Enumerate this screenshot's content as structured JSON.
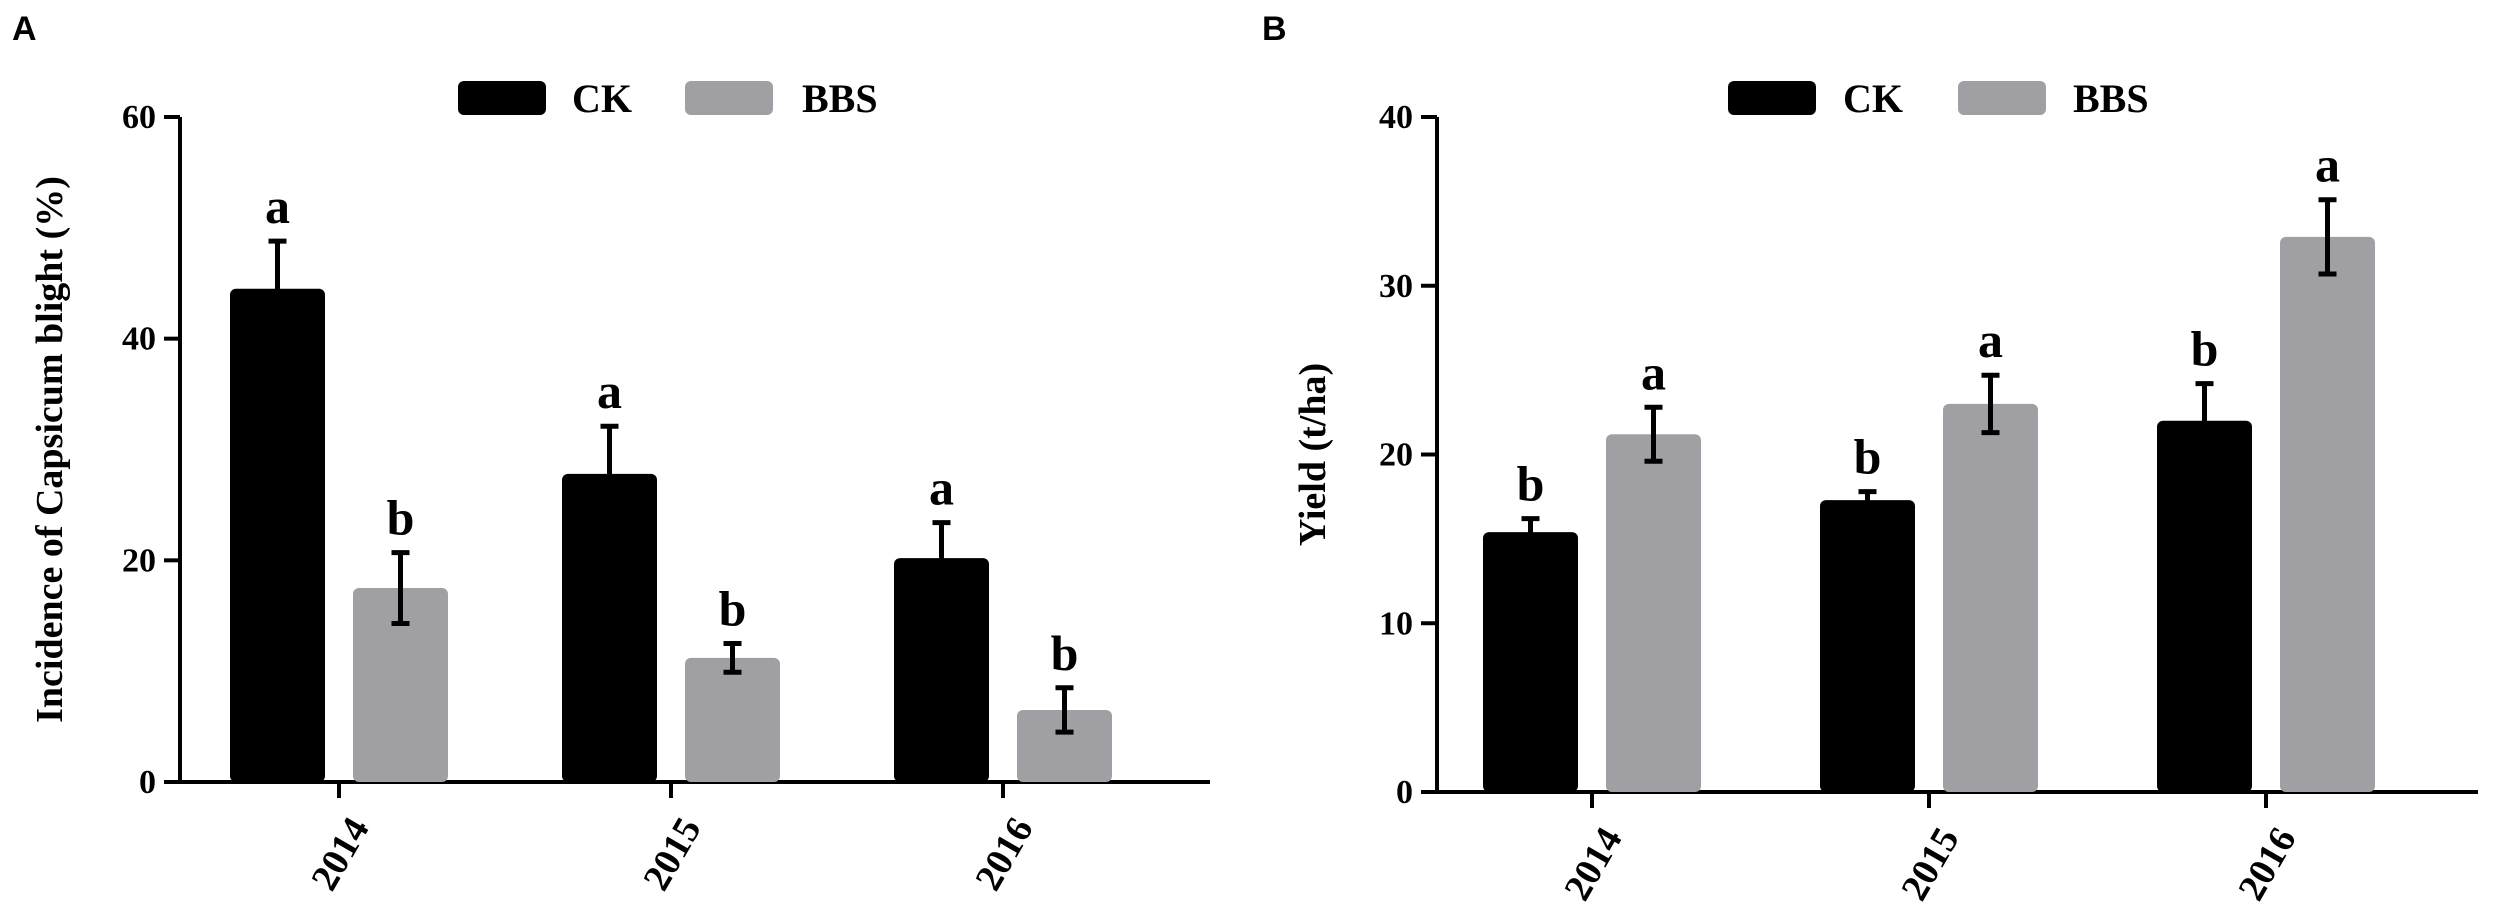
{
  "figure": {
    "panels": [
      "A",
      "B"
    ]
  },
  "colors": {
    "CK": "#000000",
    "BBS": "#a0a0a4"
  },
  "chart_data": [
    {
      "type": "bar",
      "panel": "A",
      "ylabel": "Incidence of Capsicum blight (%)",
      "xlabel": "",
      "categories": [
        "2014",
        "2015",
        "2016"
      ],
      "ylim": [
        0,
        60
      ],
      "yticks": [
        "0",
        "20",
        "40",
        "60"
      ],
      "legend": "top",
      "series": [
        {
          "name": "CK",
          "values": [
            44.5,
            27.8,
            20.2
          ],
          "errors": [
            4.3,
            4.3,
            3.2
          ],
          "labels": [
            "a",
            "a",
            "a"
          ]
        },
        {
          "name": "BBS",
          "values": [
            17.5,
            11.2,
            6.5
          ],
          "errors": [
            3.2,
            1.3,
            2.0
          ],
          "labels": [
            "b",
            "b",
            "b"
          ]
        }
      ]
    },
    {
      "type": "bar",
      "panel": "B",
      "ylabel": "Yield (t/ha)",
      "xlabel": "",
      "categories": [
        "2014",
        "2015",
        "2016"
      ],
      "ylim": [
        0,
        40
      ],
      "yticks": [
        "0",
        "10",
        "20",
        "30",
        "40"
      ],
      "legend": "top",
      "series": [
        {
          "name": "CK",
          "values": [
            15.4,
            17.3,
            22.0
          ],
          "errors": [
            0.8,
            0.5,
            2.2
          ],
          "labels": [
            "b",
            "b",
            "b"
          ]
        },
        {
          "name": "BBS",
          "values": [
            21.2,
            23.0,
            32.9
          ],
          "errors": [
            1.6,
            1.7,
            2.2
          ],
          "labels": [
            "a",
            "a",
            "a"
          ]
        }
      ]
    }
  ]
}
